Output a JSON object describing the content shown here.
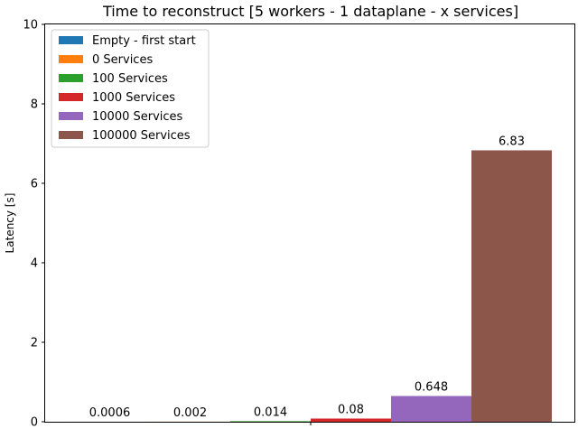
{
  "chart_data": {
    "type": "bar",
    "title": "Time to reconstruct [5 workers - 1 dataplane - x services]",
    "xlabel": "",
    "ylabel": "Latency [s]",
    "ylim": [
      0,
      10
    ],
    "yticks": [
      0,
      2,
      4,
      6,
      8,
      10
    ],
    "grid": false,
    "legend_position": "top-left",
    "series": [
      {
        "name": "Empty - first start",
        "value": 0.0006,
        "label": "0.0006",
        "color": "#1f77b4"
      },
      {
        "name": "0 Services",
        "value": 0.002,
        "label": "0.002",
        "color": "#ff7f0e"
      },
      {
        "name": "100 Services",
        "value": 0.014,
        "label": "0.014",
        "color": "#2ca02c"
      },
      {
        "name": "1000 Services",
        "value": 0.08,
        "label": "0.08",
        "color": "#d62728"
      },
      {
        "name": "10000 Services",
        "value": 0.648,
        "label": "0.648",
        "color": "#9467bd"
      },
      {
        "name": "100000 Services",
        "value": 6.83,
        "label": "6.83",
        "color": "#8c564b"
      }
    ]
  }
}
